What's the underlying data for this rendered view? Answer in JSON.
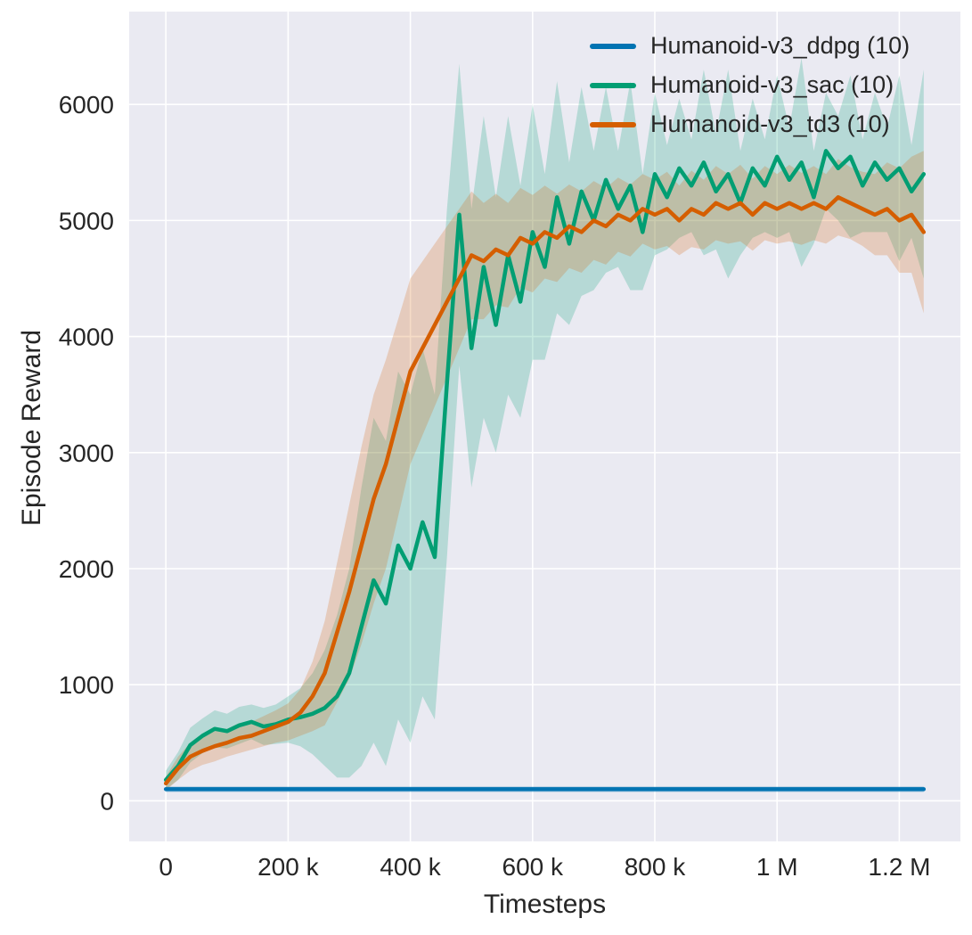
{
  "figure": {
    "xlabel": "Timesteps",
    "ylabel": "Episode Reward"
  },
  "chart_data": {
    "type": "line",
    "title": "",
    "xlabel": "Timesteps",
    "ylabel": "Episode Reward",
    "x_unit": "thousands of timesteps",
    "plot_background": "#eaeaf2",
    "grid_color": "#ffffff",
    "grid": true,
    "legend_position": "upper right",
    "band_opacity": 0.22,
    "xlim": [
      -60,
      1300
    ],
    "ylim": [
      -350,
      6800
    ],
    "x_tick_values": [
      0,
      200,
      400,
      600,
      800,
      1000,
      1200
    ],
    "x_tick_labels": [
      "0",
      "200 k",
      "400 k",
      "600 k",
      "800 k",
      "1 M",
      "1.2 M"
    ],
    "y_tick_values": [
      0,
      1000,
      2000,
      3000,
      4000,
      5000,
      6000
    ],
    "y_tick_labels": [
      "0",
      "1000",
      "2000",
      "3000",
      "4000",
      "5000",
      "6000"
    ],
    "x": [
      0,
      20,
      40,
      60,
      80,
      100,
      120,
      140,
      160,
      180,
      200,
      220,
      240,
      260,
      280,
      300,
      320,
      340,
      360,
      380,
      400,
      420,
      440,
      460,
      480,
      500,
      520,
      540,
      560,
      580,
      600,
      620,
      640,
      660,
      680,
      700,
      720,
      740,
      760,
      780,
      800,
      820,
      840,
      860,
      880,
      900,
      920,
      940,
      960,
      980,
      1000,
      1020,
      1040,
      1060,
      1080,
      1100,
      1120,
      1140,
      1160,
      1180,
      1200,
      1220,
      1240
    ],
    "series": [
      {
        "name": "Humanoid-v3_ddpg (10)",
        "color": "#0173b2",
        "values": [
          100,
          100,
          100,
          100,
          100,
          100,
          100,
          100,
          100,
          100,
          100,
          100,
          100,
          100,
          100,
          100,
          100,
          100,
          100,
          100,
          100,
          100,
          100,
          100,
          100,
          100,
          100,
          100,
          100,
          100,
          100,
          100,
          100,
          100,
          100,
          100,
          100,
          100,
          100,
          100,
          100,
          100,
          100,
          100,
          100,
          100,
          100,
          100,
          100,
          100,
          100,
          100,
          100,
          100,
          100,
          100,
          100,
          100,
          100,
          100,
          100,
          100,
          100
        ],
        "spread": [
          25,
          25,
          25,
          25,
          25,
          25,
          25,
          25,
          25,
          25,
          25,
          25,
          25,
          25,
          25,
          25,
          25,
          25,
          25,
          25,
          25,
          25,
          25,
          25,
          25,
          25,
          25,
          25,
          25,
          25,
          25,
          25,
          25,
          25,
          25,
          25,
          25,
          25,
          25,
          25,
          25,
          25,
          25,
          25,
          25,
          25,
          25,
          25,
          25,
          25,
          25,
          25,
          25,
          25,
          25,
          25,
          25,
          25,
          25,
          25,
          25,
          25,
          25
        ]
      },
      {
        "name": "Humanoid-v3_sac (10)",
        "color": "#029e73",
        "values": [
          180,
          300,
          480,
          560,
          620,
          600,
          650,
          680,
          640,
          660,
          700,
          720,
          750,
          800,
          900,
          1100,
          1500,
          1900,
          1700,
          2200,
          2000,
          2400,
          2100,
          3600,
          5050,
          3900,
          4600,
          4100,
          4700,
          4300,
          4900,
          4600,
          5200,
          4800,
          5250,
          5000,
          5350,
          5100,
          5300,
          4900,
          5400,
          5200,
          5450,
          5300,
          5500,
          5250,
          5400,
          5150,
          5450,
          5300,
          5550,
          5350,
          5500,
          5200,
          5600,
          5450,
          5550,
          5300,
          5500,
          5350,
          5450,
          5250,
          5400
        ],
        "spread": [
          80,
          120,
          150,
          150,
          160,
          150,
          160,
          150,
          160,
          170,
          200,
          250,
          350,
          500,
          700,
          900,
          1200,
          1400,
          1400,
          1500,
          1500,
          1500,
          1400,
          1500,
          1300,
          1200,
          1300,
          1100,
          1200,
          1000,
          1100,
          800,
          1000,
          700,
          900,
          600,
          800,
          500,
          900,
          500,
          700,
          450,
          600,
          400,
          800,
          500,
          900,
          450,
          600,
          400,
          700,
          450,
          900,
          400,
          500,
          450,
          700,
          400,
          600,
          450,
          800,
          400,
          900
        ]
      },
      {
        "name": "Humanoid-v3_td3 (10)",
        "color": "#d55e00",
        "values": [
          150,
          280,
          380,
          430,
          470,
          500,
          540,
          560,
          600,
          640,
          680,
          760,
          900,
          1100,
          1450,
          1800,
          2200,
          2600,
          2900,
          3300,
          3700,
          3900,
          4100,
          4300,
          4500,
          4700,
          4650,
          4750,
          4700,
          4850,
          4800,
          4900,
          4850,
          4950,
          4900,
          5000,
          4950,
          5050,
          5000,
          5100,
          5050,
          5100,
          5000,
          5100,
          5050,
          5150,
          5100,
          5150,
          5050,
          5150,
          5100,
          5150,
          5100,
          5150,
          5100,
          5200,
          5150,
          5100,
          5050,
          5100,
          5000,
          5050,
          4900
        ],
        "spread": [
          60,
          100,
          120,
          120,
          130,
          120,
          130,
          120,
          130,
          140,
          160,
          200,
          300,
          450,
          600,
          750,
          850,
          900,
          900,
          850,
          800,
          750,
          700,
          650,
          600,
          550,
          500,
          480,
          450,
          430,
          420,
          400,
          380,
          360,
          350,
          340,
          330,
          320,
          310,
          300,
          300,
          320,
          300,
          330,
          300,
          320,
          300,
          330,
          310,
          320,
          300,
          330,
          310,
          320,
          300,
          330,
          310,
          320,
          350,
          400,
          450,
          500,
          700
        ]
      }
    ]
  }
}
